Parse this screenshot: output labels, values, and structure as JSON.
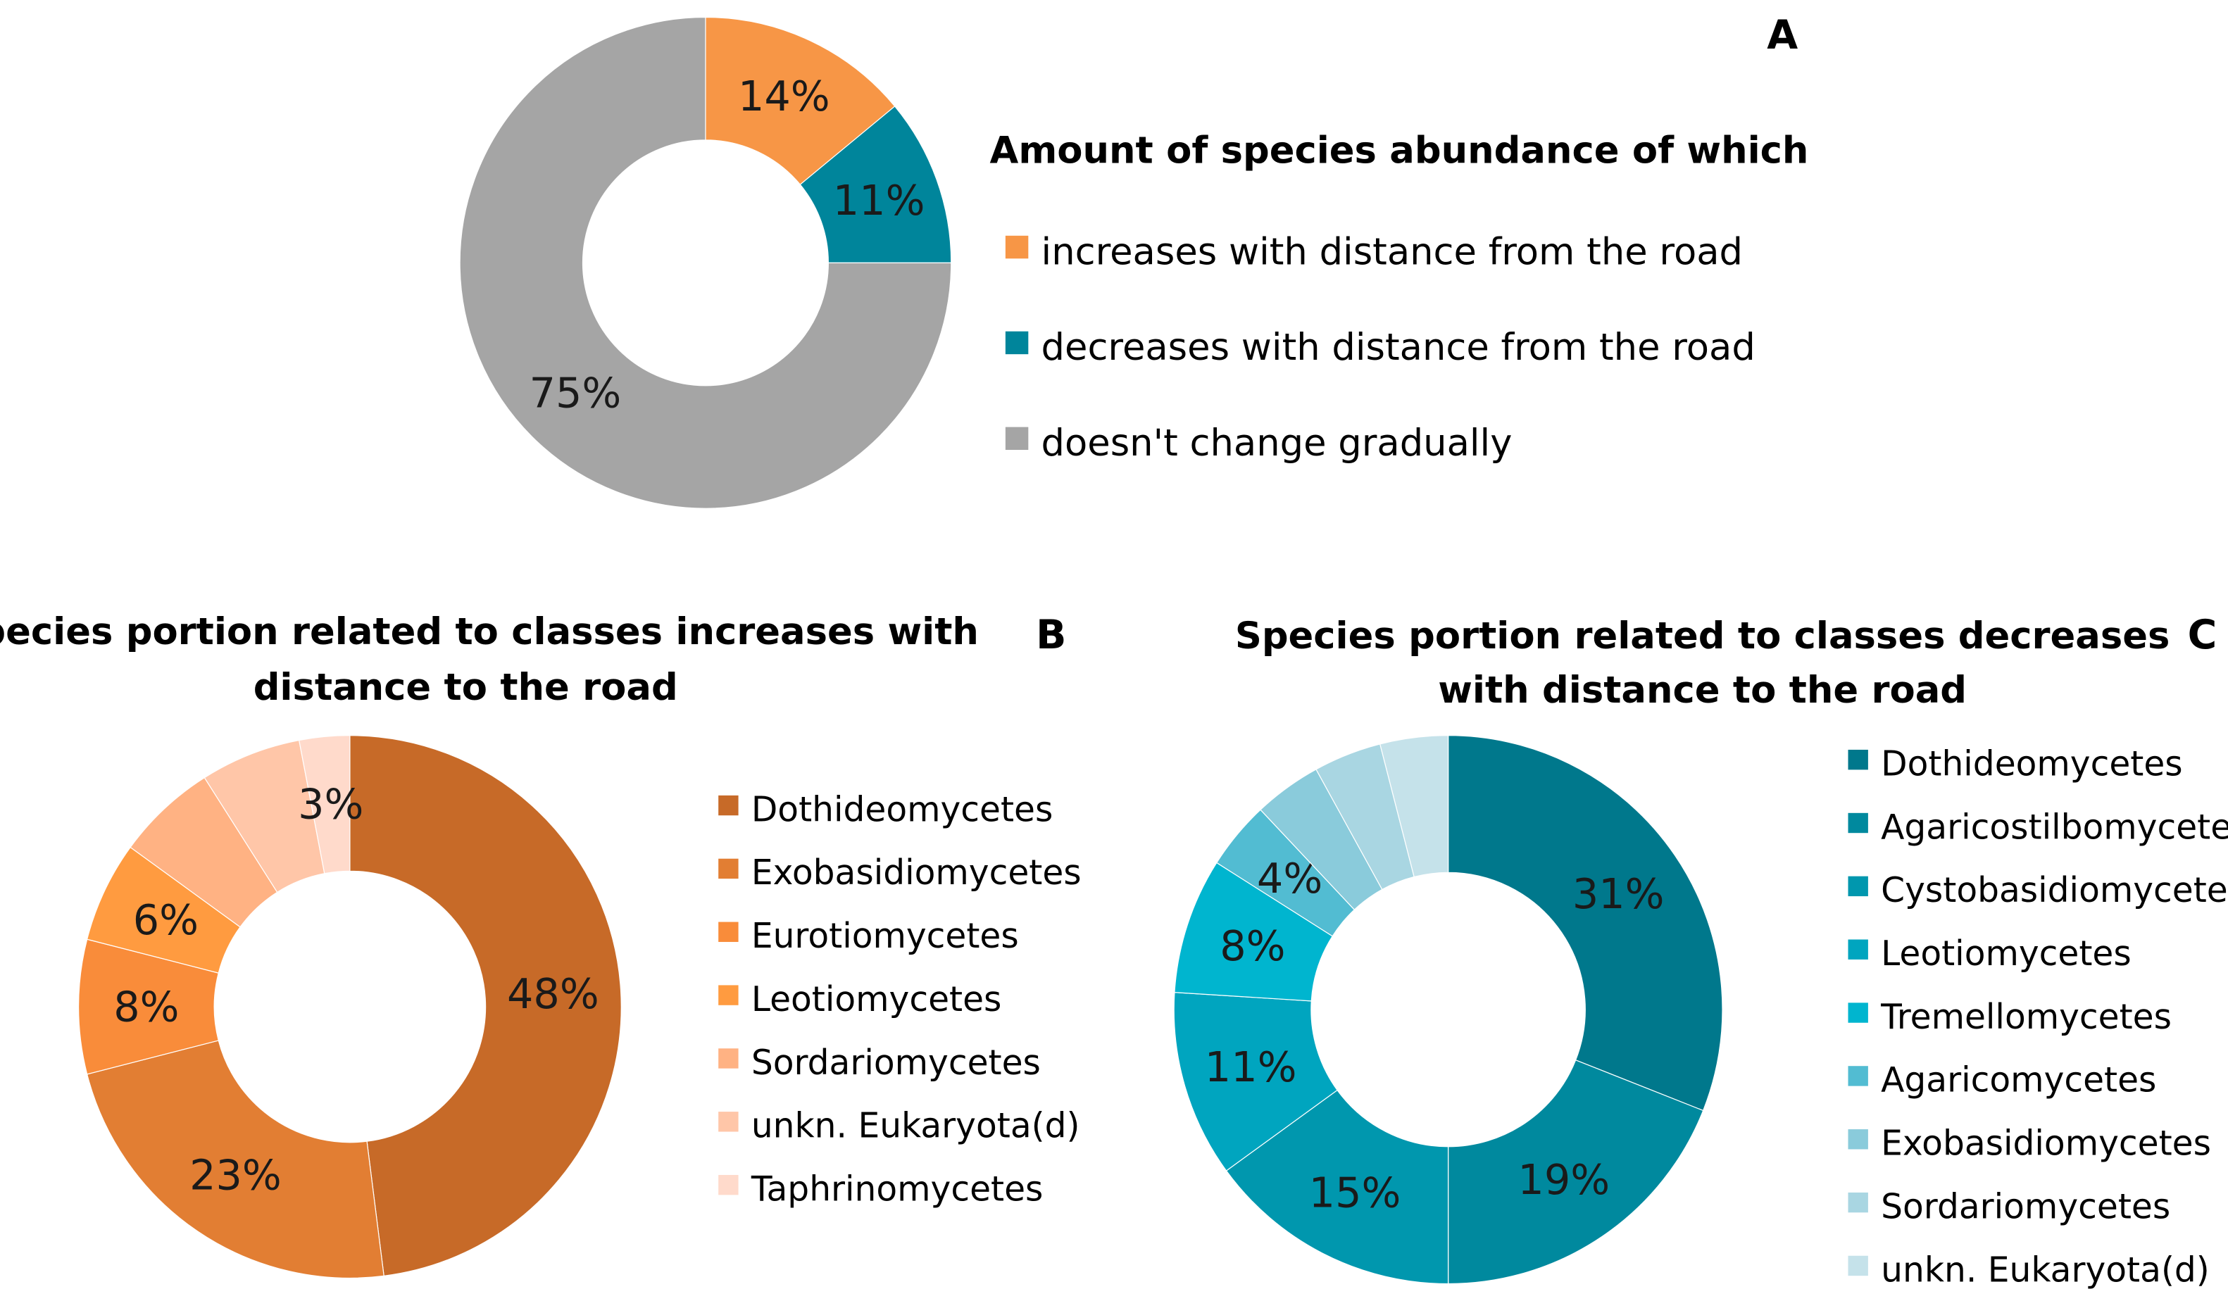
{
  "chart_data": [
    {
      "type": "pie",
      "panel": "A",
      "title": "Amount of species abundance of which",
      "donut": true,
      "legend_position": "right",
      "slices": [
        {
          "name": "increases with distance from the road",
          "value": 14,
          "label": "14%",
          "color": "#F79646",
          "labeled": true
        },
        {
          "name": "decreases with distance from the road",
          "value": 11,
          "label": "11%",
          "color": "#00859B",
          "labeled": true
        },
        {
          "name": "doesn't change gradually",
          "value": 75,
          "label": "75%",
          "color": "#A5A5A5",
          "labeled": true
        }
      ]
    },
    {
      "type": "pie",
      "panel": "B",
      "title": [
        "Species portion related to classes increases with",
        "distance to the road"
      ],
      "donut": true,
      "legend_position": "right",
      "slices": [
        {
          "name": "Dothideomycetes",
          "value": 48,
          "label": "48%",
          "color": "#C76A28",
          "labeled": true
        },
        {
          "name": "Exobasidiomycetes",
          "value": 23,
          "label": "23%",
          "color": "#E27E33",
          "labeled": true
        },
        {
          "name": "Eurotiomycetes",
          "value": 8,
          "label": "8%",
          "color": "#F98C3A",
          "labeled": true
        },
        {
          "name": "Leotiomycetes",
          "value": 6,
          "label": "6%",
          "color": "#FF9B40",
          "labeled": true
        },
        {
          "name": "Sordariomycetes",
          "value": 6,
          "label": "6%",
          "color": "#FFB283",
          "labeled": false
        },
        {
          "name": "unkn. Eukaryota(d)",
          "value": 6,
          "label": "6%",
          "color": "#FFC6A8",
          "labeled": false
        },
        {
          "name": "Taphrinomycetes",
          "value": 3,
          "label": "3%",
          "color": "#FFDACB",
          "labeled": true
        }
      ]
    },
    {
      "type": "pie",
      "panel": "C",
      "title": [
        "Species portion related to classes decreases",
        "with distance to the road"
      ],
      "donut": true,
      "legend_position": "right",
      "slices": [
        {
          "name": "Dothideomycetes",
          "value": 31,
          "label": "31%",
          "color": "#00788C",
          "labeled": true
        },
        {
          "name": "Agaricostilbomycetes",
          "value": 19,
          "label": "19%",
          "color": "#00899E",
          "labeled": true
        },
        {
          "name": "Cystobasidiomycetes",
          "value": 15,
          "label": "15%",
          "color": "#0097AE",
          "labeled": true
        },
        {
          "name": "Leotiomycetes",
          "value": 11,
          "label": "11%",
          "color": "#00A5BF",
          "labeled": true
        },
        {
          "name": "Tremellomycetes",
          "value": 8,
          "label": "8%",
          "color": "#00B5CF",
          "labeled": true
        },
        {
          "name": "Agaricomycetes",
          "value": 4,
          "label": "4%",
          "color": "#52BCD2",
          "labeled": true
        },
        {
          "name": "Exobasidiomycetes",
          "value": 4,
          "label": "4%",
          "color": "#8ACBDB",
          "labeled": false
        },
        {
          "name": "Sordariomycetes",
          "value": 4,
          "label": "4%",
          "color": "#A9D6E2",
          "labeled": false
        },
        {
          "name": "unkn. Eukaryota(d)",
          "value": 4,
          "label": "4%",
          "color": "#C5E2EA",
          "labeled": false
        }
      ]
    }
  ]
}
